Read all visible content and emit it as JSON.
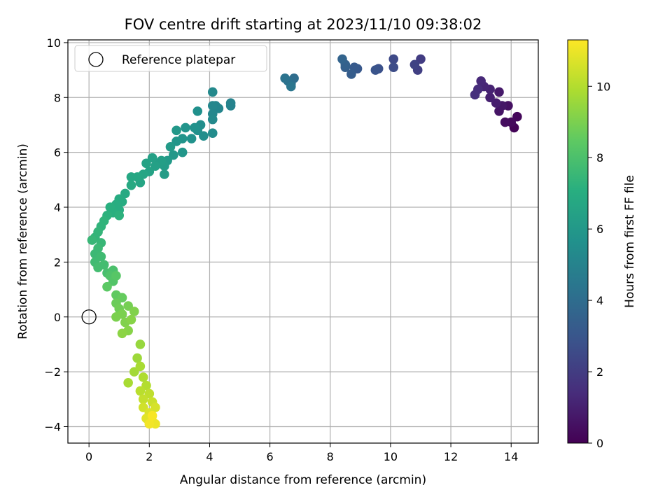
{
  "chart_data": {
    "type": "scatter",
    "title": "FOV centre drift starting at 2023/11/10 09:38:02",
    "xlabel": "Angular distance from reference (arcmin)",
    "ylabel": "Rotation from reference (arcmin)",
    "xlim": [
      -0.7,
      14.9
    ],
    "ylim": [
      -4.6,
      10.1
    ],
    "xticks": [
      0,
      2,
      4,
      6,
      8,
      10,
      12,
      14
    ],
    "yticks": [
      -4,
      -2,
      0,
      2,
      4,
      6,
      8,
      10
    ],
    "grid": true,
    "legend": {
      "position": "top-left",
      "label": "Reference platepar"
    },
    "reference_point": {
      "x": 0,
      "y": 0
    },
    "colorbar": {
      "label": "Hours from first FF file",
      "range": [
        0,
        11.3
      ],
      "ticks": [
        0,
        2,
        4,
        6,
        8,
        10
      ],
      "colormap": "viridis"
    },
    "points": [
      {
        "x": 14.1,
        "y": 6.9,
        "t": 0.1
      },
      {
        "x": 14.2,
        "y": 7.3,
        "t": 0.2
      },
      {
        "x": 14.0,
        "y": 7.1,
        "t": 0.3
      },
      {
        "x": 13.8,
        "y": 7.1,
        "t": 0.4
      },
      {
        "x": 13.9,
        "y": 7.7,
        "t": 0.5
      },
      {
        "x": 13.6,
        "y": 7.5,
        "t": 0.6
      },
      {
        "x": 13.7,
        "y": 7.7,
        "t": 0.7
      },
      {
        "x": 13.6,
        "y": 8.2,
        "t": 0.8
      },
      {
        "x": 13.5,
        "y": 7.8,
        "t": 0.9
      },
      {
        "x": 13.3,
        "y": 8.0,
        "t": 1.0
      },
      {
        "x": 13.3,
        "y": 8.3,
        "t": 1.1
      },
      {
        "x": 13.1,
        "y": 8.4,
        "t": 1.2
      },
      {
        "x": 13.0,
        "y": 8.6,
        "t": 1.3
      },
      {
        "x": 12.9,
        "y": 8.3,
        "t": 1.4
      },
      {
        "x": 12.8,
        "y": 8.1,
        "t": 1.5
      },
      {
        "x": 11.0,
        "y": 9.4,
        "t": 2.0
      },
      {
        "x": 10.9,
        "y": 9.0,
        "t": 2.1
      },
      {
        "x": 10.8,
        "y": 9.2,
        "t": 2.2
      },
      {
        "x": 10.1,
        "y": 9.4,
        "t": 2.5
      },
      {
        "x": 10.1,
        "y": 9.1,
        "t": 2.6
      },
      {
        "x": 9.6,
        "y": 9.05,
        "t": 2.8
      },
      {
        "x": 9.5,
        "y": 9.0,
        "t": 2.9
      },
      {
        "x": 8.9,
        "y": 9.05,
        "t": 3.1
      },
      {
        "x": 8.8,
        "y": 9.1,
        "t": 3.2
      },
      {
        "x": 8.7,
        "y": 8.85,
        "t": 3.3
      },
      {
        "x": 8.5,
        "y": 9.1,
        "t": 3.4
      },
      {
        "x": 8.5,
        "y": 9.2,
        "t": 3.5
      },
      {
        "x": 8.4,
        "y": 9.4,
        "t": 3.6
      },
      {
        "x": 6.8,
        "y": 8.7,
        "t": 4.0
      },
      {
        "x": 6.7,
        "y": 8.5,
        "t": 4.1
      },
      {
        "x": 6.6,
        "y": 8.6,
        "t": 4.2
      },
      {
        "x": 6.5,
        "y": 8.7,
        "t": 4.3
      },
      {
        "x": 6.7,
        "y": 8.4,
        "t": 4.4
      },
      {
        "x": 4.7,
        "y": 7.8,
        "t": 5.0
      },
      {
        "x": 4.7,
        "y": 7.7,
        "t": 5.0
      },
      {
        "x": 4.3,
        "y": 7.6,
        "t": 5.1
      },
      {
        "x": 4.2,
        "y": 7.7,
        "t": 5.1
      },
      {
        "x": 4.1,
        "y": 7.7,
        "t": 5.2
      },
      {
        "x": 4.1,
        "y": 7.4,
        "t": 5.2
      },
      {
        "x": 4.1,
        "y": 7.2,
        "t": 5.3
      },
      {
        "x": 4.1,
        "y": 8.2,
        "t": 5.3
      },
      {
        "x": 4.1,
        "y": 6.7,
        "t": 5.4
      },
      {
        "x": 3.8,
        "y": 6.6,
        "t": 5.5
      },
      {
        "x": 3.7,
        "y": 7.0,
        "t": 5.5
      },
      {
        "x": 3.6,
        "y": 7.5,
        "t": 5.6
      },
      {
        "x": 3.6,
        "y": 6.8,
        "t": 5.6
      },
      {
        "x": 3.5,
        "y": 6.9,
        "t": 5.7
      },
      {
        "x": 3.4,
        "y": 6.5,
        "t": 5.7
      },
      {
        "x": 3.2,
        "y": 6.9,
        "t": 5.8
      },
      {
        "x": 3.1,
        "y": 6.5,
        "t": 5.8
      },
      {
        "x": 3.1,
        "y": 6.0,
        "t": 5.9
      },
      {
        "x": 2.9,
        "y": 6.4,
        "t": 5.9
      },
      {
        "x": 2.9,
        "y": 6.8,
        "t": 6.0
      },
      {
        "x": 2.8,
        "y": 5.9,
        "t": 6.0
      },
      {
        "x": 2.7,
        "y": 6.2,
        "t": 6.1
      },
      {
        "x": 2.6,
        "y": 5.7,
        "t": 6.1
      },
      {
        "x": 2.5,
        "y": 5.5,
        "t": 6.2
      },
      {
        "x": 2.5,
        "y": 5.2,
        "t": 6.2
      },
      {
        "x": 2.4,
        "y": 5.7,
        "t": 6.3
      },
      {
        "x": 2.3,
        "y": 5.6,
        "t": 6.3
      },
      {
        "x": 2.2,
        "y": 5.5,
        "t": 6.4
      },
      {
        "x": 2.1,
        "y": 5.8,
        "t": 6.4
      },
      {
        "x": 2.0,
        "y": 5.3,
        "t": 6.5
      },
      {
        "x": 1.9,
        "y": 5.6,
        "t": 6.5
      },
      {
        "x": 1.8,
        "y": 5.2,
        "t": 6.6
      },
      {
        "x": 1.7,
        "y": 4.9,
        "t": 6.6
      },
      {
        "x": 1.6,
        "y": 5.1,
        "t": 6.7
      },
      {
        "x": 1.4,
        "y": 5.1,
        "t": 6.7
      },
      {
        "x": 1.4,
        "y": 4.8,
        "t": 6.8
      },
      {
        "x": 1.2,
        "y": 4.5,
        "t": 6.8
      },
      {
        "x": 1.1,
        "y": 4.2,
        "t": 6.9
      },
      {
        "x": 1.0,
        "y": 4.3,
        "t": 6.9
      },
      {
        "x": 1.0,
        "y": 3.9,
        "t": 7.0
      },
      {
        "x": 0.9,
        "y": 4.1,
        "t": 7.0
      },
      {
        "x": 0.8,
        "y": 3.8,
        "t": 7.1
      },
      {
        "x": 0.7,
        "y": 4.0,
        "t": 7.1
      },
      {
        "x": 0.6,
        "y": 3.7,
        "t": 7.2
      },
      {
        "x": 1.0,
        "y": 3.7,
        "t": 7.2
      },
      {
        "x": 0.5,
        "y": 3.5,
        "t": 7.3
      },
      {
        "x": 0.4,
        "y": 3.3,
        "t": 7.3
      },
      {
        "x": 0.3,
        "y": 3.1,
        "t": 7.4
      },
      {
        "x": 0.2,
        "y": 2.9,
        "t": 7.4
      },
      {
        "x": 0.1,
        "y": 2.8,
        "t": 7.5
      },
      {
        "x": 0.4,
        "y": 2.7,
        "t": 7.5
      },
      {
        "x": 0.3,
        "y": 2.5,
        "t": 7.6
      },
      {
        "x": 0.2,
        "y": 2.3,
        "t": 7.6
      },
      {
        "x": 0.4,
        "y": 2.2,
        "t": 7.7
      },
      {
        "x": 0.2,
        "y": 2.0,
        "t": 7.7
      },
      {
        "x": 0.3,
        "y": 1.8,
        "t": 7.8
      },
      {
        "x": 0.5,
        "y": 1.9,
        "t": 7.8
      },
      {
        "x": 0.6,
        "y": 1.6,
        "t": 7.9
      },
      {
        "x": 0.8,
        "y": 1.7,
        "t": 8.0
      },
      {
        "x": 0.7,
        "y": 1.5,
        "t": 8.1
      },
      {
        "x": 0.8,
        "y": 1.3,
        "t": 8.2
      },
      {
        "x": 0.9,
        "y": 1.5,
        "t": 8.3
      },
      {
        "x": 0.6,
        "y": 1.1,
        "t": 8.4
      },
      {
        "x": 0.9,
        "y": 0.8,
        "t": 8.5
      },
      {
        "x": 1.1,
        "y": 0.7,
        "t": 8.6
      },
      {
        "x": 0.9,
        "y": 0.5,
        "t": 8.7
      },
      {
        "x": 1.0,
        "y": 0.3,
        "t": 8.8
      },
      {
        "x": 1.3,
        "y": 0.4,
        "t": 8.9
      },
      {
        "x": 1.1,
        "y": 0.1,
        "t": 9.0
      },
      {
        "x": 0.9,
        "y": 0.0,
        "t": 9.0
      },
      {
        "x": 1.2,
        "y": -0.2,
        "t": 9.1
      },
      {
        "x": 1.5,
        "y": 0.2,
        "t": 9.1
      },
      {
        "x": 1.4,
        "y": -0.1,
        "t": 9.2
      },
      {
        "x": 1.3,
        "y": -0.5,
        "t": 9.2
      },
      {
        "x": 1.1,
        "y": -0.6,
        "t": 9.3
      },
      {
        "x": 1.7,
        "y": -1.0,
        "t": 9.5
      },
      {
        "x": 1.6,
        "y": -1.5,
        "t": 9.6
      },
      {
        "x": 1.5,
        "y": -2.0,
        "t": 9.7
      },
      {
        "x": 1.7,
        "y": -1.8,
        "t": 9.8
      },
      {
        "x": 1.3,
        "y": -2.4,
        "t": 9.8
      },
      {
        "x": 1.8,
        "y": -2.2,
        "t": 9.9
      },
      {
        "x": 1.9,
        "y": -2.5,
        "t": 10.0
      },
      {
        "x": 1.7,
        "y": -2.7,
        "t": 10.1
      },
      {
        "x": 2.0,
        "y": -2.8,
        "t": 10.2
      },
      {
        "x": 1.8,
        "y": -3.0,
        "t": 10.3
      },
      {
        "x": 2.1,
        "y": -3.1,
        "t": 10.4
      },
      {
        "x": 1.8,
        "y": -3.3,
        "t": 10.5
      },
      {
        "x": 2.2,
        "y": -3.3,
        "t": 10.6
      },
      {
        "x": 2.0,
        "y": -3.5,
        "t": 10.7
      },
      {
        "x": 1.9,
        "y": -3.7,
        "t": 10.8
      },
      {
        "x": 2.1,
        "y": -3.8,
        "t": 10.9
      },
      {
        "x": 2.2,
        "y": -3.9,
        "t": 11.0
      },
      {
        "x": 2.0,
        "y": -3.9,
        "t": 11.1
      },
      {
        "x": 2.1,
        "y": -3.6,
        "t": 11.2
      }
    ]
  }
}
